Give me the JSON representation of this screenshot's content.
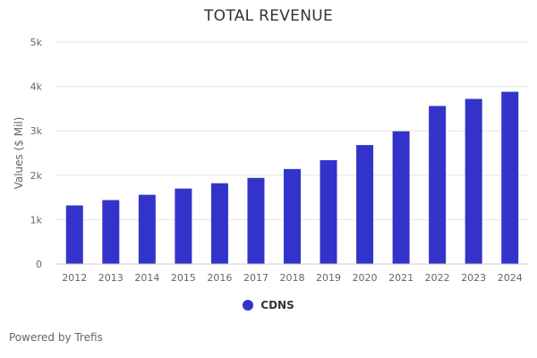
{
  "chart_data": {
    "type": "bar",
    "title": "TOTAL REVENUE",
    "xlabel": "",
    "ylabel": "Values ($ Mil)",
    "categories": [
      "2012",
      "2013",
      "2014",
      "2015",
      "2016",
      "2017",
      "2018",
      "2019",
      "2020",
      "2021",
      "2022",
      "2023",
      "2024"
    ],
    "series": [
      {
        "name": "CDNS",
        "values": [
          1320,
          1440,
          1560,
          1700,
          1820,
          1940,
          2140,
          2340,
          2680,
          2990,
          3560,
          3720,
          3880
        ]
      }
    ],
    "ylim": [
      0,
      5000
    ],
    "yticks": [
      0,
      1000,
      2000,
      3000,
      4000,
      5000
    ],
    "ytick_labels": [
      "0",
      "1k",
      "2k",
      "3k",
      "4k",
      "5k"
    ],
    "grid": true,
    "legend_position": "bottom-center",
    "colors": {
      "bar": "#3333cc",
      "grid": "#e6e6e6"
    }
  },
  "footer": {
    "credits": "Powered by Trefis"
  }
}
